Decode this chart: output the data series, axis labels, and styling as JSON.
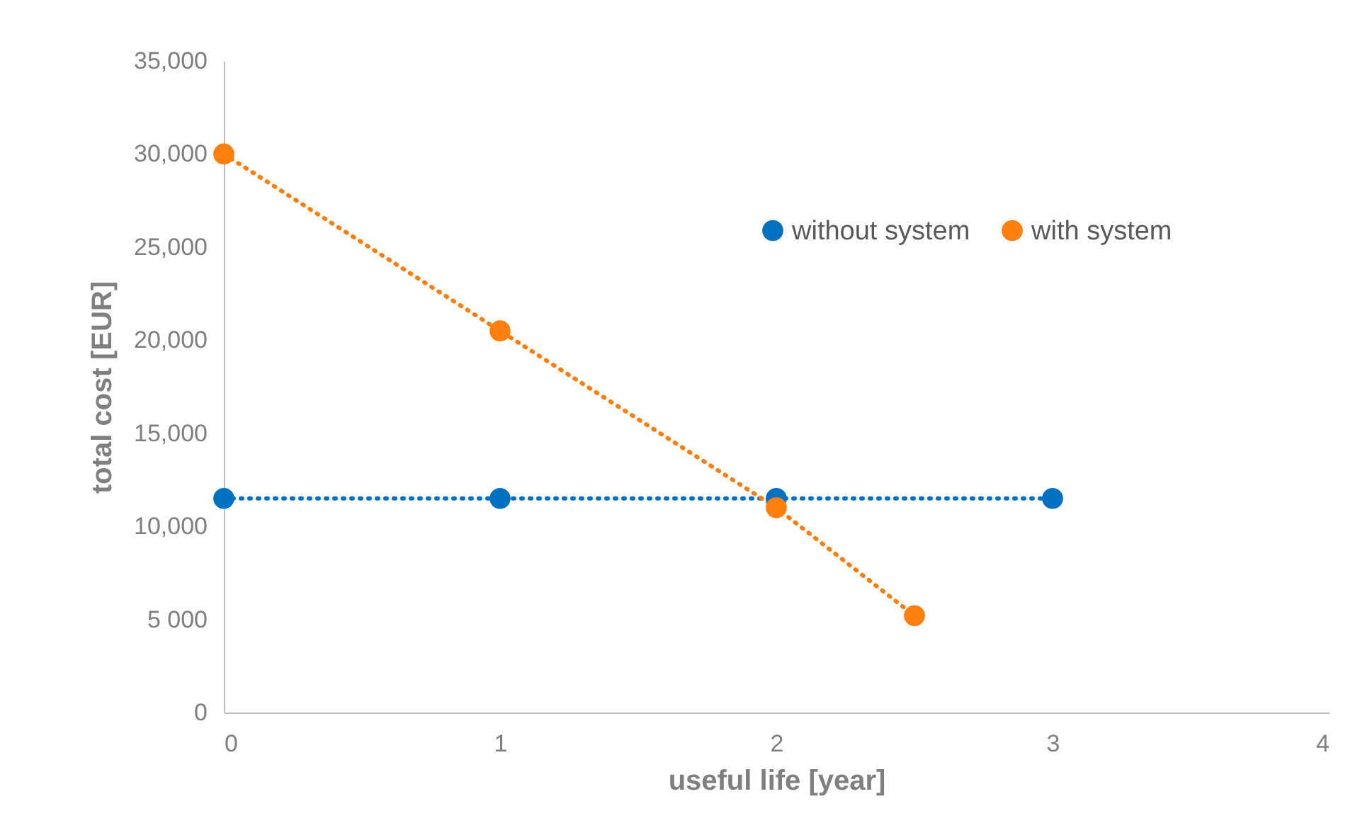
{
  "chart_data": {
    "type": "line",
    "xlabel": "useful life [year]",
    "ylabel": "total cost [EUR]",
    "xlim": [
      0,
      4
    ],
    "xticks": [
      0,
      1,
      2,
      3,
      4
    ],
    "ylim": [
      0,
      35000
    ],
    "yticks": [
      0,
      {
        "value": 5000,
        "label": "5 000"
      },
      {
        "value": 10000,
        "label": "10,000"
      },
      {
        "value": 15000,
        "label": "15,000"
      },
      {
        "value": 20000,
        "label": "20,000"
      },
      {
        "value": 25000,
        "label": "25,000"
      },
      {
        "value": 30000,
        "label": "30,000"
      },
      {
        "value": 35000,
        "label": "35,000"
      }
    ],
    "series": [
      {
        "name": "without system",
        "color": "#0070c0",
        "x": [
          0,
          1,
          2,
          3
        ],
        "values": [
          11500,
          11500,
          11500,
          11500
        ]
      },
      {
        "name": "with system",
        "color": "#ff7f0e",
        "x": [
          0,
          1,
          2,
          2.5
        ],
        "values": [
          30000,
          20500,
          11000,
          5200
        ]
      }
    ],
    "grid": false,
    "legend": "top right",
    "marker": "circle",
    "line_style": "dotted"
  }
}
